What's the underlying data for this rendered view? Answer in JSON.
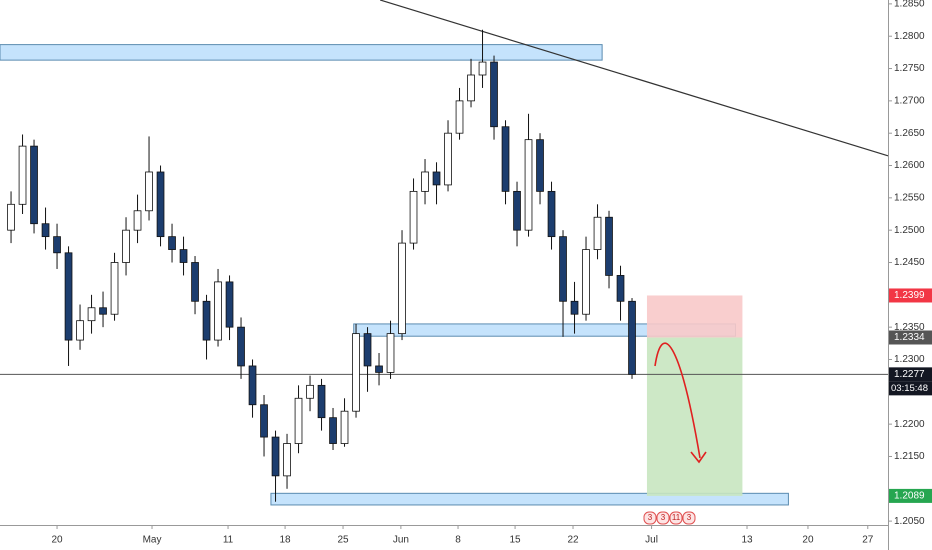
{
  "chart_data": {
    "type": "candlestick",
    "x": [
      -4,
      -3,
      -2,
      -1,
      0,
      1,
      2,
      3,
      4,
      5,
      6,
      7,
      8,
      9,
      10,
      11,
      12,
      13,
      14,
      15,
      16,
      17,
      18,
      19,
      20,
      21,
      22,
      23,
      24,
      25,
      26,
      27,
      28,
      29,
      30,
      31,
      32,
      33,
      34,
      35,
      36,
      37,
      38,
      39,
      40,
      41,
      42,
      43,
      44,
      45,
      46,
      47,
      48,
      49,
      50
    ],
    "open": [
      1.25,
      1.254,
      1.263,
      1.251,
      1.249,
      1.2465,
      1.233,
      1.236,
      1.238,
      1.237,
      1.245,
      1.25,
      1.253,
      1.259,
      1.249,
      1.247,
      1.245,
      1.239,
      1.233,
      1.242,
      1.235,
      1.229,
      1.223,
      1.218,
      1.212,
      1.217,
      1.224,
      1.226,
      1.221,
      1.217,
      1.222,
      1.234,
      1.229,
      1.228,
      1.234,
      1.248,
      1.256,
      1.259,
      1.257,
      1.265,
      1.27,
      1.274,
      1.276,
      1.266,
      1.256,
      1.25,
      1.264,
      1.256,
      1.249,
      1.239,
      1.237,
      1.247,
      1.252,
      1.243,
      1.239
    ],
    "high": [
      1.256,
      1.2648,
      1.264,
      1.2535,
      1.251,
      1.2475,
      1.2385,
      1.24,
      1.2405,
      1.2465,
      1.252,
      1.2555,
      1.2645,
      1.26,
      1.251,
      1.249,
      1.246,
      1.24,
      1.244,
      1.243,
      1.2365,
      1.23,
      1.2245,
      1.219,
      1.2185,
      1.226,
      1.2275,
      1.227,
      1.2225,
      1.224,
      1.2355,
      1.235,
      1.231,
      1.236,
      1.25,
      1.258,
      1.261,
      1.2605,
      1.267,
      1.272,
      1.2765,
      1.281,
      1.277,
      1.267,
      1.2575,
      1.268,
      1.265,
      1.2575,
      1.25,
      1.242,
      1.249,
      1.254,
      1.253,
      1.2445,
      1.2395
    ],
    "low": [
      1.248,
      1.2525,
      1.2495,
      1.247,
      1.244,
      1.229,
      1.2315,
      1.234,
      1.235,
      1.236,
      1.243,
      1.248,
      1.2515,
      1.2475,
      1.245,
      1.243,
      1.237,
      1.23,
      1.232,
      1.233,
      1.227,
      1.221,
      1.215,
      1.208,
      1.21,
      1.2155,
      1.222,
      1.219,
      1.216,
      1.2165,
      1.221,
      1.225,
      1.226,
      1.227,
      1.233,
      1.247,
      1.254,
      1.254,
      1.256,
      1.264,
      1.269,
      1.272,
      1.264,
      1.254,
      1.2475,
      1.249,
      1.254,
      1.247,
      1.2335,
      1.234,
      1.236,
      1.2455,
      1.241,
      1.236,
      1.227
    ],
    "close": [
      1.254,
      1.263,
      1.251,
      1.249,
      1.2465,
      1.233,
      1.236,
      1.238,
      1.237,
      1.245,
      1.25,
      1.253,
      1.259,
      1.249,
      1.247,
      1.245,
      1.239,
      1.233,
      1.242,
      1.235,
      1.229,
      1.223,
      1.218,
      1.212,
      1.217,
      1.224,
      1.226,
      1.221,
      1.217,
      1.222,
      1.234,
      1.229,
      1.228,
      1.234,
      1.248,
      1.256,
      1.259,
      1.257,
      1.265,
      1.27,
      1.274,
      1.276,
      1.266,
      1.256,
      1.25,
      1.264,
      1.256,
      1.249,
      1.239,
      1.237,
      1.247,
      1.252,
      1.243,
      1.239,
      1.2277
    ],
    "up_color": "#ffffff",
    "down_color": "#1c3d6e",
    "xlim": [
      -4.96,
      72.26
    ],
    "ylim": [
      1.2044,
      1.2856
    ],
    "grid": false,
    "xticks": [
      {
        "value": 0,
        "label": "20"
      },
      {
        "value": 8.26,
        "label": "May"
      },
      {
        "value": 14.87,
        "label": "11"
      },
      {
        "value": 19.83,
        "label": "18"
      },
      {
        "value": 24.87,
        "label": "25"
      },
      {
        "value": 29.9,
        "label": "Jun"
      },
      {
        "value": 34.87,
        "label": "8"
      },
      {
        "value": 39.83,
        "label": "15"
      },
      {
        "value": 44.87,
        "label": "22"
      },
      {
        "value": 51.7,
        "label": "Jul"
      },
      {
        "value": 60,
        "label": "13"
      },
      {
        "value": 65.3,
        "label": "20"
      },
      {
        "value": 70.5,
        "label": "27"
      }
    ],
    "yticks": [
      {
        "value": 1.285,
        "label": "1.2850"
      },
      {
        "value": 1.28,
        "label": "1.2800"
      },
      {
        "value": 1.275,
        "label": "1.2750"
      },
      {
        "value": 1.27,
        "label": "1.2700"
      },
      {
        "value": 1.265,
        "label": "1.2650"
      },
      {
        "value": 1.26,
        "label": "1.2600"
      },
      {
        "value": 1.255,
        "label": "1.2550"
      },
      {
        "value": 1.25,
        "label": "1.2500"
      },
      {
        "value": 1.245,
        "label": "1.2450"
      },
      {
        "value": 1.235,
        "label": "1.2350"
      },
      {
        "value": 1.23,
        "label": "1.2300"
      },
      {
        "value": 1.22,
        "label": "1.2200"
      },
      {
        "value": 1.215,
        "label": "1.2150"
      },
      {
        "value": 1.205,
        "label": "1.2050"
      }
    ],
    "zones": [
      {
        "x": [
          -4.96,
          47.4
        ],
        "y": [
          1.2763,
          1.2787
        ],
        "color": "#bbdefb"
      },
      {
        "x": [
          25.8,
          59.0
        ],
        "y": [
          1.2336,
          1.2355
        ],
        "color": "#bbdefb"
      },
      {
        "x": [
          18.6,
          63.6
        ],
        "y": [
          1.2075,
          1.2093
        ],
        "color": "#bbdefb"
      },
      {
        "x": [
          51.3,
          59.6
        ],
        "y": [
          1.2334,
          1.2399
        ],
        "color": "#f8c9c9"
      },
      {
        "x": [
          51.3,
          59.6
        ],
        "y": [
          1.2089,
          1.2334
        ],
        "color": "#c8e6c0"
      }
    ],
    "trendline": {
      "x": [
        28.1,
        72.26
      ],
      "y": [
        1.2856,
        1.2615
      ]
    },
    "last_price": 1.2277,
    "countdown": "03:15:48",
    "price_tags": [
      {
        "value": 1.2399,
        "color": "#f23645"
      },
      {
        "value": 1.2334,
        "color": "#555555"
      },
      {
        "value": 1.2089,
        "color": "#26a650"
      }
    ],
    "event_labels": [
      "3",
      "3",
      "11",
      "3"
    ]
  }
}
